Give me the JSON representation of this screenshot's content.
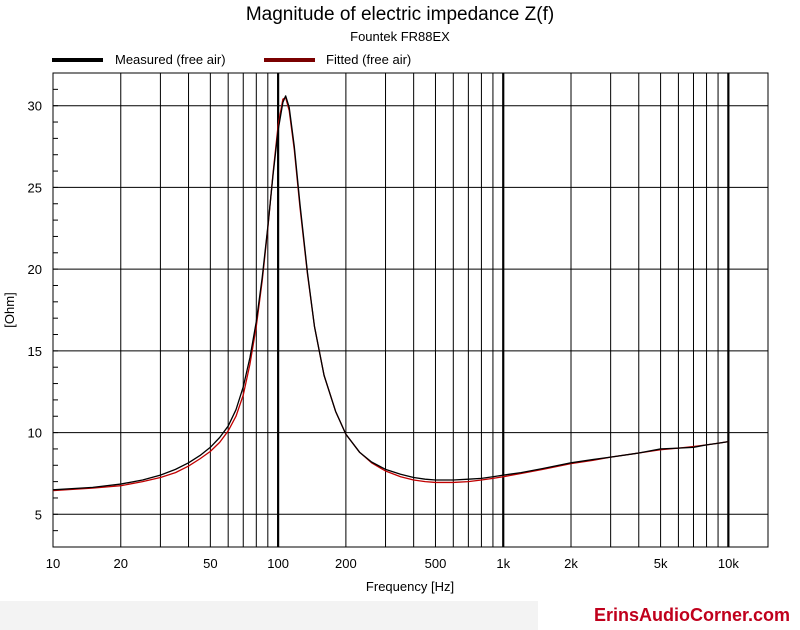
{
  "chart_data": {
    "type": "line",
    "title": "Magnitude of electric impedance Z(f)",
    "subtitle": "Fountek FR88EX",
    "xlabel": "Frequency [Hz]",
    "ylabel": "[Ohm]",
    "x_scale": "log",
    "xlim": [
      10,
      15000
    ],
    "ylim": [
      3,
      32
    ],
    "grid": true,
    "legend_position": "top",
    "x_ticks": [
      {
        "value": 10,
        "label": "10"
      },
      {
        "value": 20,
        "label": "20"
      },
      {
        "value": 50,
        "label": "50"
      },
      {
        "value": 100,
        "label": "100"
      },
      {
        "value": 200,
        "label": "200"
      },
      {
        "value": 500,
        "label": "500"
      },
      {
        "value": 1000,
        "label": "1k"
      },
      {
        "value": 2000,
        "label": "2k"
      },
      {
        "value": 5000,
        "label": "5k"
      },
      {
        "value": 10000,
        "label": "10k"
      }
    ],
    "y_ticks": [
      {
        "value": 5,
        "label": "5"
      },
      {
        "value": 10,
        "label": "10"
      },
      {
        "value": 15,
        "label": "15"
      },
      {
        "value": 20,
        "label": "20"
      },
      {
        "value": 25,
        "label": "25"
      },
      {
        "value": 30,
        "label": "30"
      }
    ],
    "series": [
      {
        "name": "Measured (free air)",
        "color": "#000000",
        "points": [
          [
            10,
            6.5
          ],
          [
            15,
            6.65
          ],
          [
            20,
            6.85
          ],
          [
            25,
            7.1
          ],
          [
            30,
            7.4
          ],
          [
            35,
            7.75
          ],
          [
            40,
            8.15
          ],
          [
            45,
            8.6
          ],
          [
            50,
            9.1
          ],
          [
            55,
            9.7
          ],
          [
            60,
            10.4
          ],
          [
            65,
            11.4
          ],
          [
            70,
            12.8
          ],
          [
            75,
            14.6
          ],
          [
            80,
            16.8
          ],
          [
            85,
            19.5
          ],
          [
            90,
            22.6
          ],
          [
            95,
            25.8
          ],
          [
            100,
            28.5
          ],
          [
            105,
            30.2
          ],
          [
            108,
            30.6
          ],
          [
            112,
            29.9
          ],
          [
            118,
            27.5
          ],
          [
            125,
            24.0
          ],
          [
            135,
            19.8
          ],
          [
            145,
            16.5
          ],
          [
            160,
            13.5
          ],
          [
            180,
            11.3
          ],
          [
            200,
            9.9
          ],
          [
            230,
            8.8
          ],
          [
            260,
            8.2
          ],
          [
            300,
            7.75
          ],
          [
            350,
            7.45
          ],
          [
            400,
            7.25
          ],
          [
            450,
            7.15
          ],
          [
            500,
            7.1
          ],
          [
            600,
            7.1
          ],
          [
            700,
            7.15
          ],
          [
            800,
            7.2
          ],
          [
            900,
            7.3
          ],
          [
            1000,
            7.4
          ],
          [
            1200,
            7.55
          ],
          [
            1500,
            7.8
          ],
          [
            2000,
            8.15
          ],
          [
            2500,
            8.35
          ],
          [
            3000,
            8.5
          ],
          [
            4000,
            8.75
          ],
          [
            5000,
            9.0
          ],
          [
            6000,
            9.05
          ],
          [
            7000,
            9.1
          ],
          [
            8000,
            9.25
          ],
          [
            9000,
            9.35
          ],
          [
            10000,
            9.45
          ]
        ]
      },
      {
        "name": "Fitted (free air)",
        "color": "#c00000",
        "points": [
          [
            10,
            6.45
          ],
          [
            15,
            6.6
          ],
          [
            20,
            6.75
          ],
          [
            25,
            7.0
          ],
          [
            30,
            7.25
          ],
          [
            35,
            7.55
          ],
          [
            40,
            7.95
          ],
          [
            45,
            8.4
          ],
          [
            50,
            8.85
          ],
          [
            55,
            9.4
          ],
          [
            60,
            10.1
          ],
          [
            65,
            11.0
          ],
          [
            70,
            12.3
          ],
          [
            75,
            14.2
          ],
          [
            80,
            16.5
          ],
          [
            85,
            19.3
          ],
          [
            90,
            22.5
          ],
          [
            95,
            25.9
          ],
          [
            100,
            28.8
          ],
          [
            105,
            30.4
          ],
          [
            108,
            30.5
          ],
          [
            112,
            29.7
          ],
          [
            118,
            27.3
          ],
          [
            125,
            23.8
          ],
          [
            135,
            19.7
          ],
          [
            145,
            16.5
          ],
          [
            160,
            13.5
          ],
          [
            180,
            11.3
          ],
          [
            200,
            9.9
          ],
          [
            230,
            8.8
          ],
          [
            260,
            8.15
          ],
          [
            300,
            7.65
          ],
          [
            350,
            7.3
          ],
          [
            400,
            7.1
          ],
          [
            450,
            7.0
          ],
          [
            500,
            6.95
          ],
          [
            600,
            6.95
          ],
          [
            700,
            7.0
          ],
          [
            800,
            7.1
          ],
          [
            900,
            7.2
          ],
          [
            1000,
            7.3
          ],
          [
            1200,
            7.5
          ],
          [
            1500,
            7.75
          ],
          [
            2000,
            8.1
          ],
          [
            2500,
            8.3
          ],
          [
            3000,
            8.5
          ],
          [
            4000,
            8.75
          ],
          [
            5000,
            8.95
          ],
          [
            6000,
            9.05
          ],
          [
            7000,
            9.15
          ],
          [
            8000,
            9.25
          ],
          [
            9000,
            9.35
          ],
          [
            10000,
            9.45
          ]
        ]
      }
    ]
  },
  "watermark": "ErinsAudioCorner.com"
}
